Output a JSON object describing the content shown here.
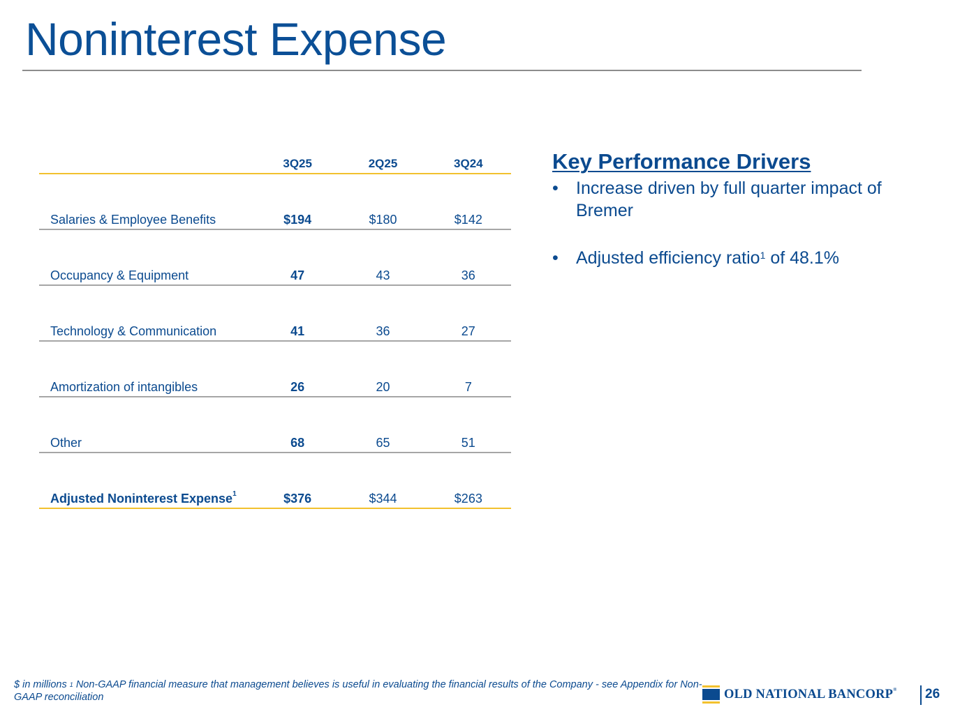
{
  "title": "Noninterest Expense",
  "table": {
    "columns": [
      "3Q25",
      "2Q25",
      "3Q24"
    ],
    "rows": [
      {
        "label": "Salaries & Employee Benefits",
        "values": [
          "$194",
          "$180",
          "$142"
        ]
      },
      {
        "label": "Occupancy & Equipment",
        "values": [
          "47",
          "43",
          "36"
        ]
      },
      {
        "label": "Technology & Communication",
        "values": [
          "41",
          "36",
          "27"
        ]
      },
      {
        "label": "Amortization of intangibles",
        "values": [
          "26",
          "20",
          "7"
        ]
      },
      {
        "label": "Other",
        "values": [
          "68",
          "65",
          "51"
        ]
      }
    ],
    "total": {
      "label": "Adjusted Noninterest Expense",
      "sup": "1",
      "values": [
        "$376",
        "$344",
        "$263"
      ]
    }
  },
  "drivers": {
    "heading": "Key Performance Drivers",
    "bullet_char": "•",
    "bullets": [
      {
        "text": "Increase driven by full quarter impact of Bremer"
      },
      {
        "text_before": "Adjusted efficiency ratio",
        "sup": "1",
        "text_after": " of 48.1%"
      }
    ]
  },
  "footnote": {
    "prefix": "$ in millions  ",
    "sup": "1",
    "text": " Non-GAAP financial measure that management believes is useful in evaluating the financial results of the Company - see Appendix for Non-GAAP reconciliation"
  },
  "logo": {
    "name": "OLD NATIONAL BANCORP",
    "mark": "®"
  },
  "page_number": "26",
  "colors": {
    "primary": "#0b4a8f",
    "accent": "#f2c12e",
    "rule": "#a6a6a6"
  }
}
